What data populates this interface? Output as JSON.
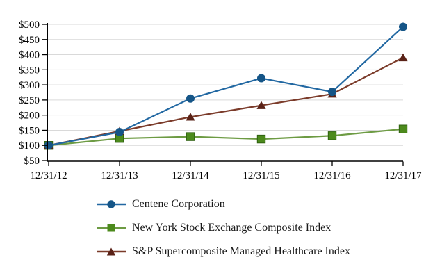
{
  "chart_data": {
    "type": "line",
    "title": "",
    "xlabel": "",
    "ylabel": "",
    "x_categories": [
      "12/31/12",
      "12/31/13",
      "12/31/14",
      "12/31/15",
      "12/31/16",
      "12/31/17"
    ],
    "y_ticks": [
      50,
      100,
      150,
      200,
      250,
      300,
      350,
      400,
      450,
      500
    ],
    "y_tick_prefix": "$",
    "ylim": [
      50,
      500
    ],
    "grid": "horizontal-only",
    "gridline_color": "#d9d9d9",
    "axis_color": "#000000",
    "legend_position": "below-left",
    "series": [
      {
        "name": "Centene Corporation",
        "marker": "circle",
        "line_color": "#2268a2",
        "marker_color": "#155587",
        "values": [
          100,
          144,
          255,
          322,
          277,
          492
        ]
      },
      {
        "name": "New York Stock Exchange Composite Index",
        "marker": "square",
        "line_color": "#6d9b43",
        "marker_color": "#4c8a1c",
        "marker_border": "#2f6110",
        "values": [
          100,
          123,
          129,
          121,
          132,
          154
        ]
      },
      {
        "name": "S&P Supercomposite Managed Healthcare Index",
        "marker": "triangle",
        "line_color": "#7b3b2a",
        "marker_color": "#5a2217",
        "values": [
          100,
          147,
          194,
          232,
          270,
          390
        ]
      }
    ]
  }
}
